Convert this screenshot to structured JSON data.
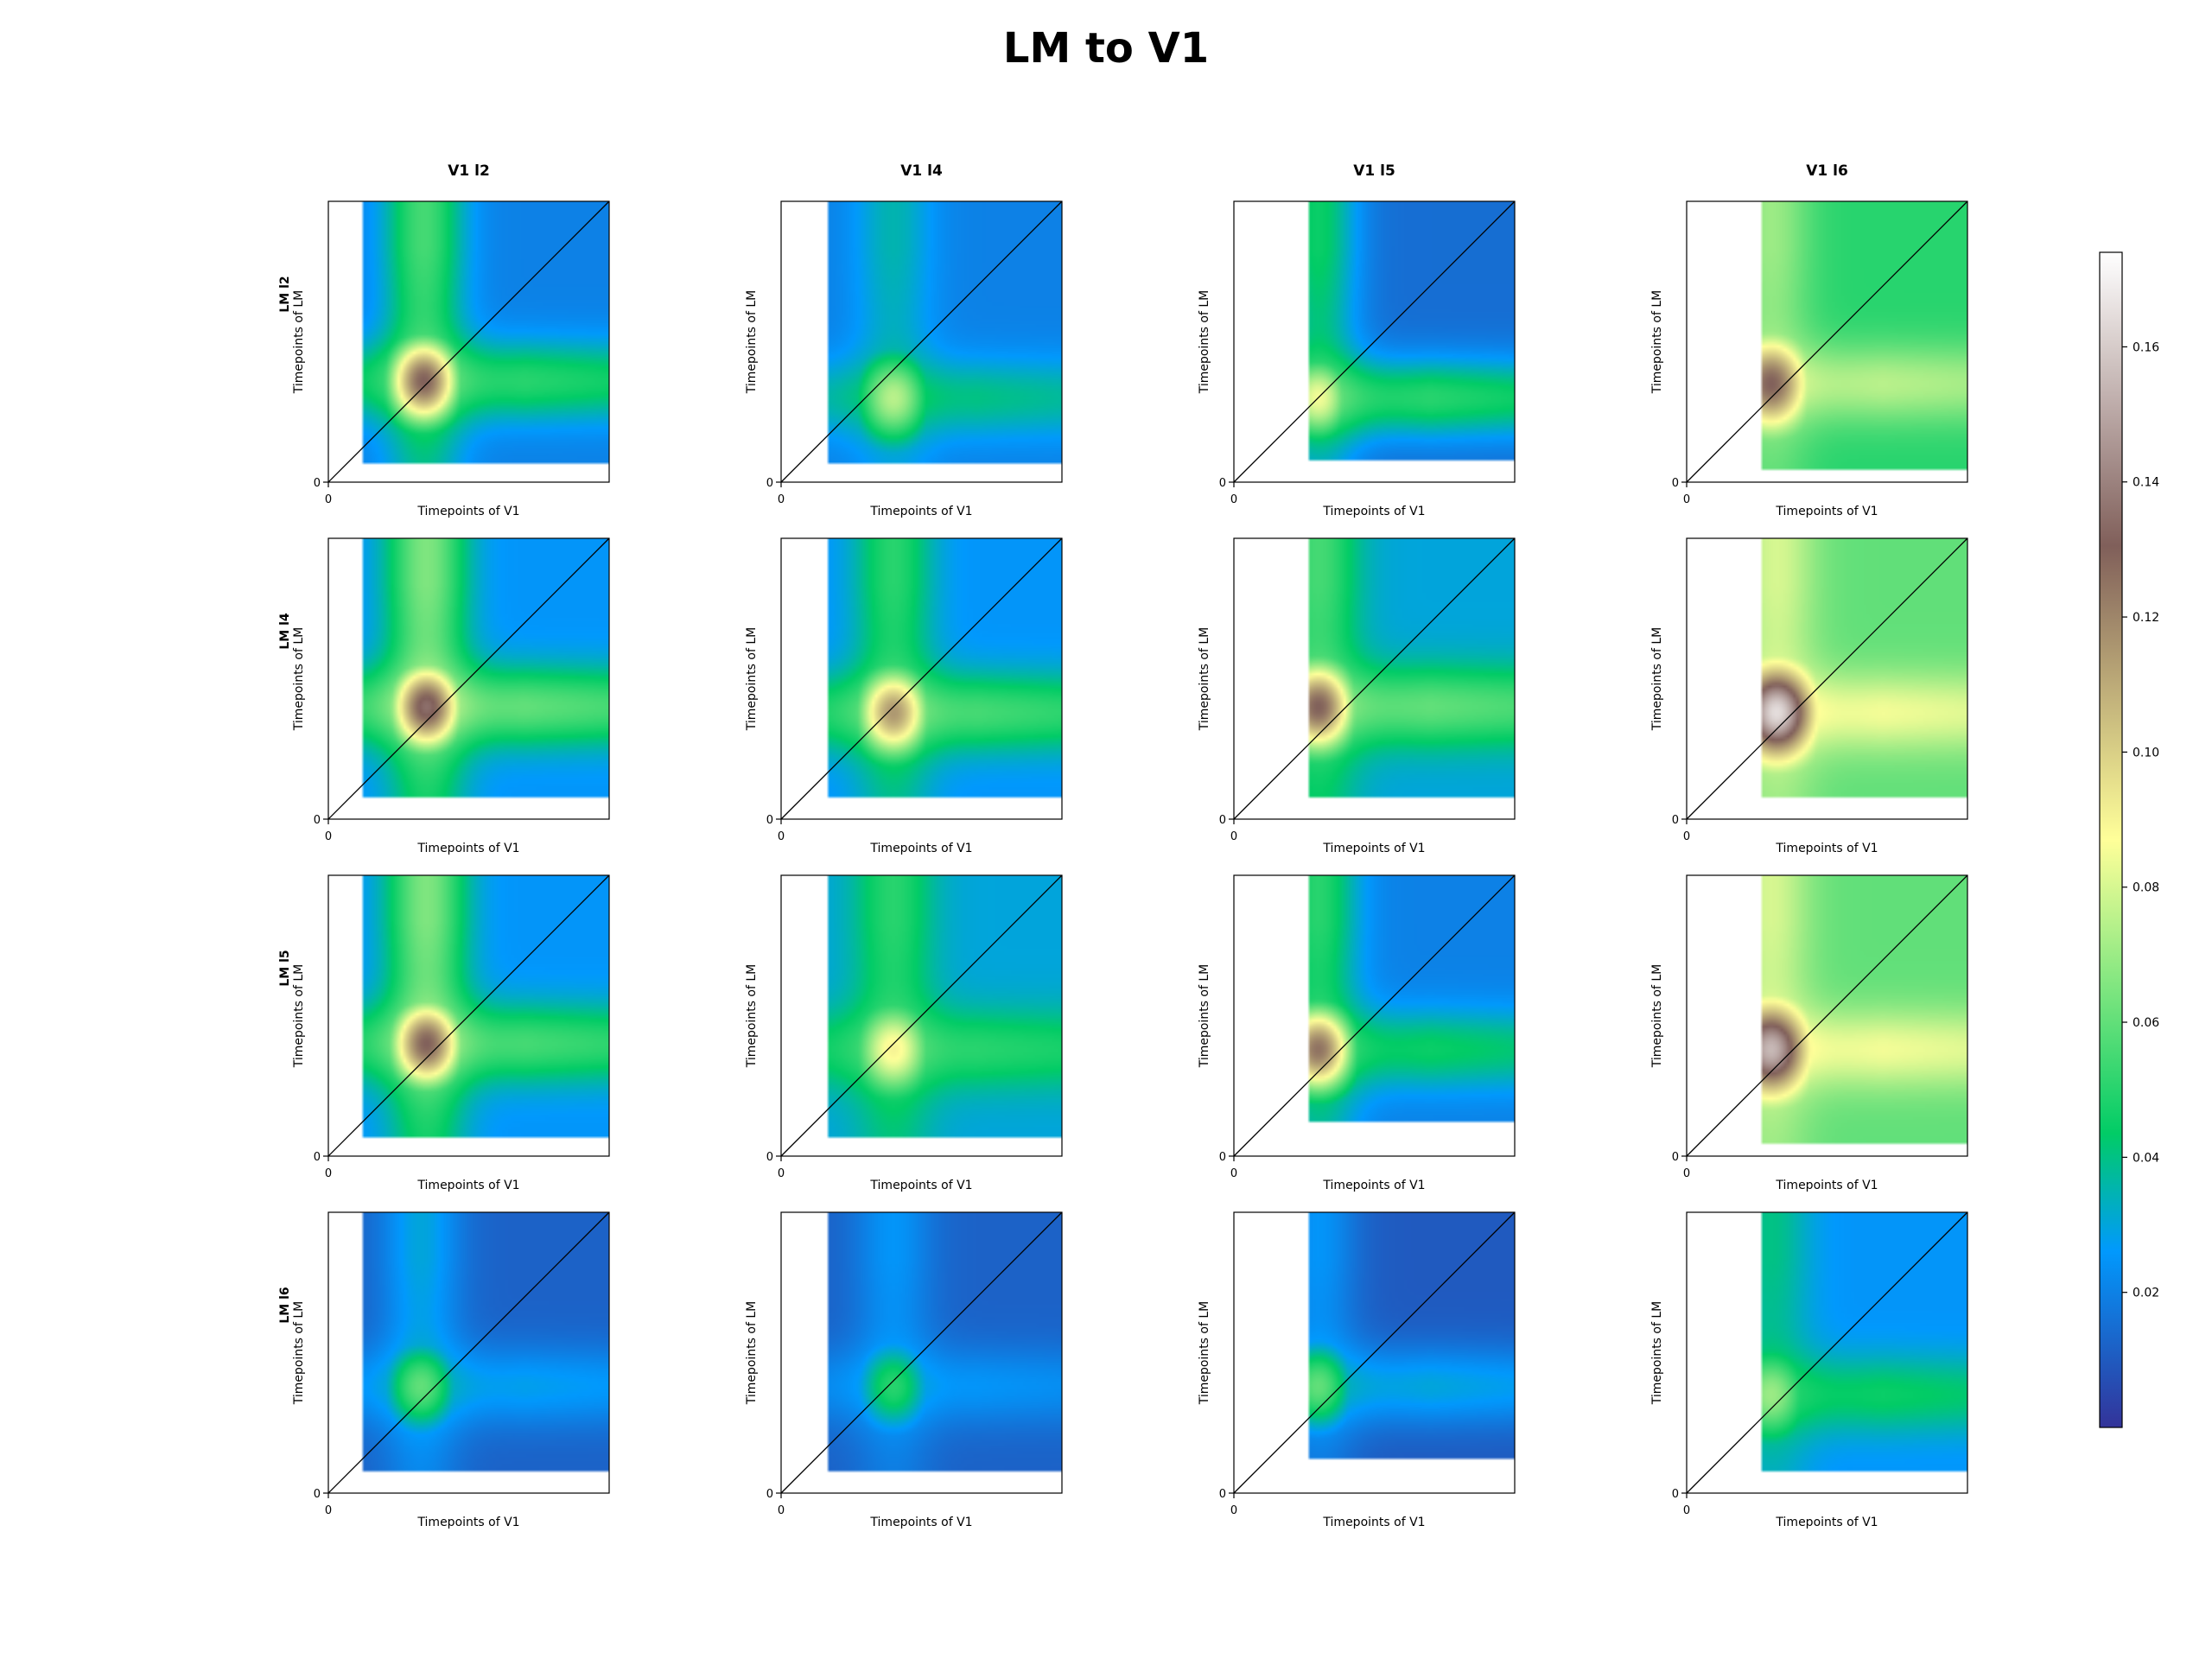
{
  "title": "LM to V1",
  "colorbar": {
    "ticks": [
      "0.02",
      "0.04",
      "0.06",
      "0.08",
      "0.10",
      "0.12",
      "0.14",
      "0.16"
    ],
    "tick_values": [
      0.02,
      0.04,
      0.06,
      0.08,
      0.1,
      0.12,
      0.14,
      0.16
    ],
    "range": [
      0.0,
      0.174
    ],
    "colormap": "terrain",
    "colors": [
      "#333399",
      "#0199fd",
      "#00cc66",
      "#ffff99",
      "#7f5f5a",
      "#ffffff"
    ]
  },
  "chart_data": {
    "type": "heatmap",
    "title": "LM to V1",
    "column_titles": [
      "V1 l2",
      "V1 l4",
      "V1 l5",
      "V1 l6"
    ],
    "row_titles": [
      "LM l2",
      "LM l4",
      "LM l5",
      "LM l6"
    ],
    "xlabel": "Timepoints of V1",
    "ylabel": "Timepoints of LM",
    "x_tick": "0",
    "y_tick": "0",
    "diagonal_line": true,
    "panels": [
      {
        "row": "LM l2",
        "col": "V1 l2",
        "valid_x_start": 0.12,
        "valid_y_start": 0.07,
        "peak": {
          "x": 0.34,
          "y": 0.36,
          "value": 0.13
        },
        "background": 0.02,
        "vertical_band_value": 0.055,
        "horizontal_band_value": 0.05
      },
      {
        "row": "LM l2",
        "col": "V1 l4",
        "valid_x_start": 0.17,
        "valid_y_start": 0.07,
        "peak": {
          "x": 0.4,
          "y": 0.3,
          "value": 0.075
        },
        "background": 0.02,
        "vertical_band_value": 0.035,
        "horizontal_band_value": 0.04
      },
      {
        "row": "LM l2",
        "col": "V1 l5",
        "valid_x_start": 0.27,
        "valid_y_start": 0.08,
        "peak": {
          "x": 0.3,
          "y": 0.3,
          "value": 0.085
        },
        "background": 0.015,
        "vertical_band_value": 0.045,
        "horizontal_band_value": 0.05
      },
      {
        "row": "LM l2",
        "col": "V1 l6",
        "valid_x_start": 0.27,
        "valid_y_start": 0.05,
        "peak": {
          "x": 0.3,
          "y": 0.35,
          "value": 0.13
        },
        "background": 0.05,
        "vertical_band_value": 0.07,
        "horizontal_band_value": 0.075
      },
      {
        "row": "LM l4",
        "col": "V1 l2",
        "valid_x_start": 0.12,
        "valid_y_start": 0.08,
        "peak": {
          "x": 0.35,
          "y": 0.4,
          "value": 0.135
        },
        "background": 0.025,
        "vertical_band_value": 0.065,
        "horizontal_band_value": 0.06
      },
      {
        "row": "LM l4",
        "col": "V1 l4",
        "valid_x_start": 0.17,
        "valid_y_start": 0.08,
        "peak": {
          "x": 0.4,
          "y": 0.38,
          "value": 0.115
        },
        "background": 0.025,
        "vertical_band_value": 0.05,
        "horizontal_band_value": 0.055
      },
      {
        "row": "LM l4",
        "col": "V1 l5",
        "valid_x_start": 0.27,
        "valid_y_start": 0.08,
        "peak": {
          "x": 0.3,
          "y": 0.4,
          "value": 0.13
        },
        "background": 0.03,
        "vertical_band_value": 0.055,
        "horizontal_band_value": 0.06
      },
      {
        "row": "LM l4",
        "col": "V1 l6",
        "valid_x_start": 0.27,
        "valid_y_start": 0.08,
        "peak": {
          "x": 0.32,
          "y": 0.38,
          "value": 0.165
        },
        "background": 0.06,
        "vertical_band_value": 0.08,
        "horizontal_band_value": 0.085
      },
      {
        "row": "LM l5",
        "col": "V1 l2",
        "valid_x_start": 0.12,
        "valid_y_start": 0.07,
        "peak": {
          "x": 0.35,
          "y": 0.4,
          "value": 0.13
        },
        "background": 0.025,
        "vertical_band_value": 0.065,
        "horizontal_band_value": 0.055
      },
      {
        "row": "LM l5",
        "col": "V1 l4",
        "valid_x_start": 0.17,
        "valid_y_start": 0.07,
        "peak": {
          "x": 0.4,
          "y": 0.38,
          "value": 0.09
        },
        "background": 0.03,
        "vertical_band_value": 0.05,
        "horizontal_band_value": 0.05
      },
      {
        "row": "LM l5",
        "col": "V1 l5",
        "valid_x_start": 0.27,
        "valid_y_start": 0.12,
        "peak": {
          "x": 0.3,
          "y": 0.38,
          "value": 0.125
        },
        "background": 0.02,
        "vertical_band_value": 0.05,
        "horizontal_band_value": 0.045
      },
      {
        "row": "LM l5",
        "col": "V1 l6",
        "valid_x_start": 0.27,
        "valid_y_start": 0.05,
        "peak": {
          "x": 0.3,
          "y": 0.38,
          "value": 0.155
        },
        "background": 0.06,
        "vertical_band_value": 0.08,
        "horizontal_band_value": 0.085
      },
      {
        "row": "LM l6",
        "col": "V1 l2",
        "valid_x_start": 0.12,
        "valid_y_start": 0.08,
        "peak": {
          "x": 0.33,
          "y": 0.38,
          "value": 0.06
        },
        "background": 0.012,
        "vertical_band_value": 0.03,
        "horizontal_band_value": 0.028
      },
      {
        "row": "LM l6",
        "col": "V1 l4",
        "valid_x_start": 0.17,
        "valid_y_start": 0.08,
        "peak": {
          "x": 0.4,
          "y": 0.38,
          "value": 0.05
        },
        "background": 0.012,
        "vertical_band_value": 0.025,
        "horizontal_band_value": 0.025
      },
      {
        "row": "LM l6",
        "col": "V1 l5",
        "valid_x_start": 0.27,
        "valid_y_start": 0.12,
        "peak": {
          "x": 0.3,
          "y": 0.38,
          "value": 0.06
        },
        "background": 0.01,
        "vertical_band_value": 0.025,
        "horizontal_band_value": 0.03
      },
      {
        "row": "LM l6",
        "col": "V1 l6",
        "valid_x_start": 0.27,
        "valid_y_start": 0.08,
        "peak": {
          "x": 0.3,
          "y": 0.35,
          "value": 0.07
        },
        "background": 0.025,
        "vertical_band_value": 0.04,
        "horizontal_band_value": 0.045
      }
    ]
  }
}
